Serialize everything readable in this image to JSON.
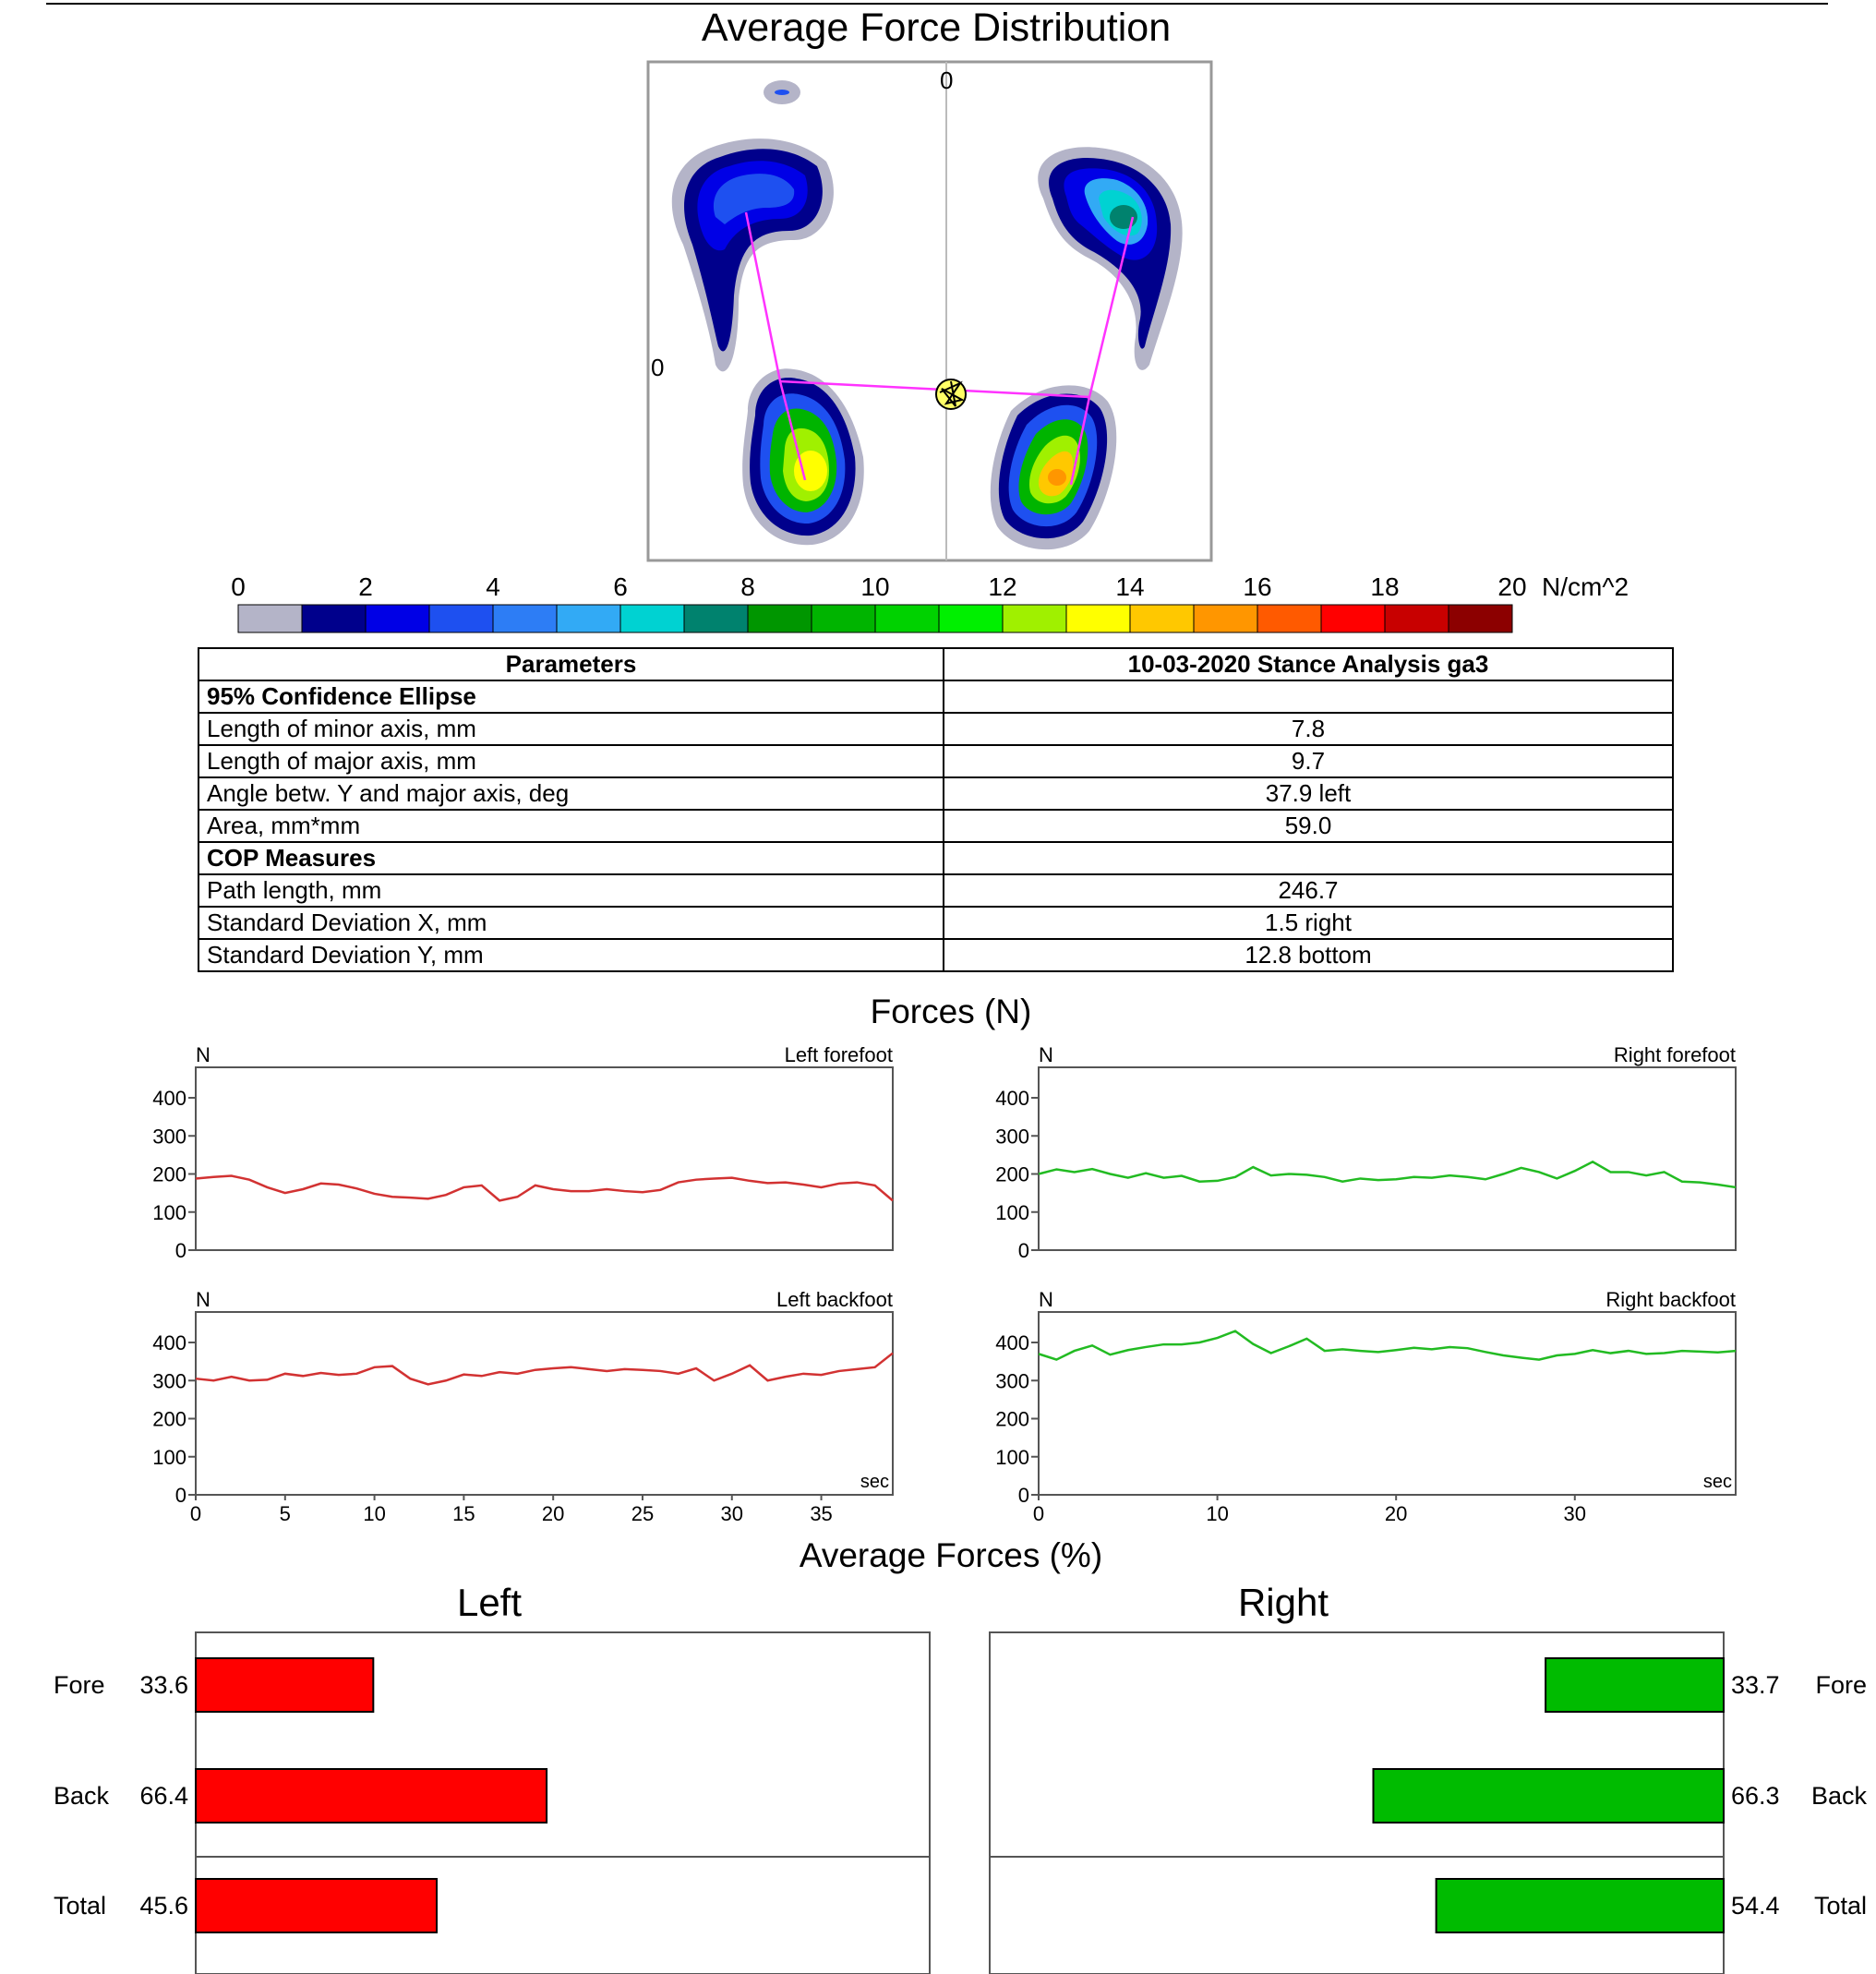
{
  "heatmap": {
    "title": "Average Force Distribution",
    "top_tick": "0",
    "left_tick": "0"
  },
  "colorbar": {
    "ticks": [
      "0",
      "2",
      "4",
      "6",
      "8",
      "10",
      "12",
      "14",
      "16",
      "18",
      "20"
    ],
    "unit": "N/cm^2",
    "colors": [
      "#b4b4c8",
      "#00008c",
      "#0000e6",
      "#1e50f0",
      "#2d7df5",
      "#32aaf5",
      "#00d2d2",
      "#00826e",
      "#009600",
      "#00b400",
      "#00d200",
      "#00f000",
      "#a0f000",
      "#ffff00",
      "#ffc800",
      "#ff9600",
      "#ff5a00",
      "#ff0000",
      "#c80000",
      "#8c0000"
    ]
  },
  "parameters": {
    "header_left": "Parameters",
    "header_right": "10-03-2020 Stance Analysis ga3",
    "rows": [
      {
        "label": "95% Confidence Ellipse",
        "value": "",
        "section": true
      },
      {
        "label": "Length of minor axis, mm",
        "value": "7.8",
        "section": false
      },
      {
        "label": "Length of major axis, mm",
        "value": "9.7",
        "section": false
      },
      {
        "label": "Angle betw. Y and major axis, deg",
        "value": "37.9 left",
        "section": false
      },
      {
        "label": "Area, mm*mm",
        "value": "59.0",
        "section": false
      },
      {
        "label": "COP Measures",
        "value": "",
        "section": true
      },
      {
        "label": "Path length, mm",
        "value": "246.7",
        "section": false
      },
      {
        "label": "Standard Deviation X, mm",
        "value": "1.5 right",
        "section": false
      },
      {
        "label": "Standard Deviation Y, mm",
        "value": "12.8 bottom",
        "section": false
      }
    ]
  },
  "forces_title": "Forces (N)",
  "avg_title": "Average Forces (%)",
  "chart_data": [
    {
      "type": "line",
      "title": "Left forefoot",
      "ylabel": "N",
      "xlabel": "",
      "ylim": [
        0,
        480
      ],
      "xlim": [
        0,
        39
      ],
      "yticks": [
        0,
        100,
        200,
        300,
        400
      ],
      "color": "#d23232",
      "x": [
        0,
        1,
        2,
        3,
        4,
        5,
        6,
        7,
        8,
        9,
        10,
        11,
        12,
        13,
        14,
        15,
        16,
        17,
        18,
        19,
        20,
        21,
        22,
        23,
        24,
        25,
        26,
        27,
        28,
        29,
        30,
        31,
        32,
        33,
        34,
        35,
        36,
        37,
        38,
        39
      ],
      "values": [
        188,
        192,
        195,
        185,
        165,
        150,
        160,
        175,
        172,
        162,
        148,
        140,
        138,
        135,
        145,
        165,
        170,
        130,
        140,
        170,
        160,
        155,
        155,
        160,
        155,
        152,
        158,
        178,
        185,
        188,
        190,
        182,
        176,
        178,
        172,
        165,
        175,
        178,
        170,
        130
      ]
    },
    {
      "type": "line",
      "title": "Right forefoot",
      "ylabel": "N",
      "xlabel": "",
      "ylim": [
        0,
        480
      ],
      "xlim": [
        0,
        39
      ],
      "yticks": [
        0,
        100,
        200,
        300,
        400
      ],
      "color": "#22bb22",
      "x": [
        0,
        1,
        2,
        3,
        4,
        5,
        6,
        7,
        8,
        9,
        10,
        11,
        12,
        13,
        14,
        15,
        16,
        17,
        18,
        19,
        20,
        21,
        22,
        23,
        24,
        25,
        26,
        27,
        28,
        29,
        30,
        31,
        32,
        33,
        34,
        35,
        36,
        37,
        38,
        39
      ],
      "values": [
        200,
        212,
        205,
        213,
        200,
        190,
        202,
        190,
        195,
        180,
        182,
        192,
        218,
        196,
        200,
        198,
        192,
        180,
        188,
        184,
        186,
        192,
        190,
        196,
        192,
        186,
        200,
        216,
        205,
        188,
        208,
        232,
        205,
        205,
        196,
        205,
        180,
        178,
        172,
        165
      ]
    },
    {
      "type": "line",
      "title": "Left backfoot",
      "ylabel": "N",
      "xlabel": "sec",
      "ylim": [
        0,
        480
      ],
      "xlim": [
        0,
        39
      ],
      "yticks": [
        0,
        100,
        200,
        300,
        400
      ],
      "xticks": [
        0,
        5,
        10,
        15,
        20,
        25,
        30,
        35
      ],
      "color": "#d23232",
      "x": [
        0,
        1,
        2,
        3,
        4,
        5,
        6,
        7,
        8,
        9,
        10,
        11,
        12,
        13,
        14,
        15,
        16,
        17,
        18,
        19,
        20,
        21,
        22,
        23,
        24,
        25,
        26,
        27,
        28,
        29,
        30,
        31,
        32,
        33,
        34,
        35,
        36,
        37,
        38,
        39
      ],
      "values": [
        305,
        300,
        310,
        300,
        302,
        318,
        312,
        320,
        315,
        318,
        335,
        338,
        305,
        290,
        300,
        316,
        312,
        322,
        318,
        328,
        332,
        335,
        330,
        325,
        330,
        328,
        325,
        318,
        332,
        300,
        318,
        340,
        300,
        310,
        318,
        315,
        325,
        330,
        335,
        372
      ]
    },
    {
      "type": "line",
      "title": "Right backfoot",
      "ylabel": "N",
      "xlabel": "sec",
      "ylim": [
        0,
        480
      ],
      "xlim": [
        0,
        39
      ],
      "yticks": [
        0,
        100,
        200,
        300,
        400
      ],
      "xticks": [
        0,
        10,
        20,
        30
      ],
      "color": "#22bb22",
      "x": [
        0,
        1,
        2,
        3,
        4,
        5,
        6,
        7,
        8,
        9,
        10,
        11,
        12,
        13,
        14,
        15,
        16,
        17,
        18,
        19,
        20,
        21,
        22,
        23,
        24,
        25,
        26,
        27,
        28,
        29,
        30,
        31,
        32,
        33,
        34,
        35,
        36,
        37,
        38,
        39
      ],
      "values": [
        370,
        355,
        378,
        392,
        368,
        380,
        388,
        395,
        395,
        400,
        412,
        430,
        396,
        372,
        390,
        410,
        378,
        382,
        378,
        375,
        380,
        386,
        382,
        388,
        385,
        375,
        366,
        360,
        355,
        366,
        370,
        380,
        372,
        378,
        370,
        372,
        378,
        376,
        374,
        378
      ]
    },
    {
      "type": "bar",
      "title": "Left",
      "orientation": "horizontal",
      "xlim": [
        0,
        100
      ],
      "color": "#ff0000",
      "categories": [
        "Fore",
        "Back",
        "Total"
      ],
      "values": [
        33.6,
        66.4,
        45.6
      ]
    },
    {
      "type": "bar",
      "title": "Right",
      "orientation": "horizontal",
      "xlim": [
        0,
        100
      ],
      "color": "#00bb00",
      "categories": [
        "Fore",
        "Back",
        "Total"
      ],
      "values": [
        33.7,
        66.3,
        54.4
      ]
    }
  ]
}
